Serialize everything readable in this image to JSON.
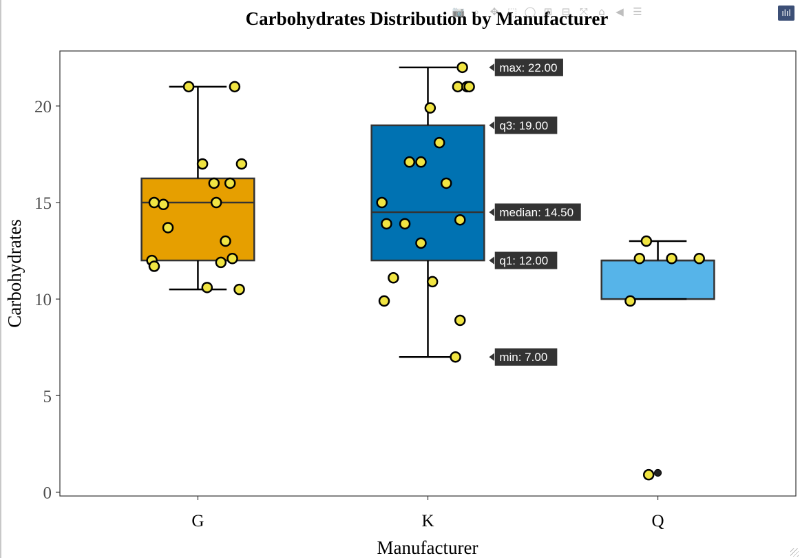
{
  "chart_data": {
    "type": "box",
    "title": "Carbohydrates Distribution by Manufacturer",
    "xlabel": "Manufacturer",
    "ylabel": "Carbohydrates",
    "categories": [
      "G",
      "K",
      "Q"
    ],
    "ylim": [
      -0.2,
      22.85
    ],
    "yticks": [
      0,
      5,
      10,
      15,
      20
    ],
    "grid": false,
    "colors": {
      "G": "#E69F00",
      "K": "#0072B2",
      "Q": "#56B4E9"
    },
    "point_color": "#F0E442",
    "boxes": [
      {
        "category": "G",
        "min": 10.5,
        "q1": 12,
        "median": 15,
        "q3": 16.25,
        "max": 21
      },
      {
        "category": "K",
        "min": 7,
        "q1": 12,
        "median": 14.5,
        "q3": 19,
        "max": 22
      },
      {
        "category": "Q",
        "min": 10,
        "q1": 10,
        "median": 12,
        "q3": 12,
        "max": 13
      }
    ],
    "outliers": [
      {
        "category": "Q",
        "y": 1
      }
    ],
    "points": [
      {
        "category": "G",
        "jitter": -0.04,
        "y": 21
      },
      {
        "category": "G",
        "jitter": 0.16,
        "y": 21
      },
      {
        "category": "G",
        "jitter": 0.02,
        "y": 17
      },
      {
        "category": "G",
        "jitter": 0.19,
        "y": 17
      },
      {
        "category": "G",
        "jitter": 0.07,
        "y": 16
      },
      {
        "category": "G",
        "jitter": 0.14,
        "y": 16
      },
      {
        "category": "G",
        "jitter": 0.08,
        "y": 15
      },
      {
        "category": "G",
        "jitter": -0.19,
        "y": 15
      },
      {
        "category": "G",
        "jitter": -0.15,
        "y": 14.9
      },
      {
        "category": "G",
        "jitter": -0.13,
        "y": 13.7
      },
      {
        "category": "G",
        "jitter": 0.12,
        "y": 13
      },
      {
        "category": "G",
        "jitter": 0.15,
        "y": 12.1
      },
      {
        "category": "G",
        "jitter": 0.1,
        "y": 11.9
      },
      {
        "category": "G",
        "jitter": -0.2,
        "y": 12
      },
      {
        "category": "G",
        "jitter": -0.19,
        "y": 11.7
      },
      {
        "category": "G",
        "jitter": 0.04,
        "y": 10.6
      },
      {
        "category": "G",
        "jitter": 0.18,
        "y": 10.5
      },
      {
        "category": "K",
        "jitter": 0.15,
        "y": 22
      },
      {
        "category": "K",
        "jitter": 0.13,
        "y": 21
      },
      {
        "category": "K",
        "jitter": 0.17,
        "y": 21
      },
      {
        "category": "K",
        "jitter": 0.18,
        "y": 21
      },
      {
        "category": "K",
        "jitter": 0.01,
        "y": 19.9
      },
      {
        "category": "K",
        "jitter": 0.05,
        "y": 18.1
      },
      {
        "category": "K",
        "jitter": -0.08,
        "y": 17.1
      },
      {
        "category": "K",
        "jitter": -0.03,
        "y": 17.1
      },
      {
        "category": "K",
        "jitter": 0.08,
        "y": 16
      },
      {
        "category": "K",
        "jitter": -0.2,
        "y": 15
      },
      {
        "category": "K",
        "jitter": 0.14,
        "y": 14.1
      },
      {
        "category": "K",
        "jitter": -0.18,
        "y": 13.9
      },
      {
        "category": "K",
        "jitter": -0.1,
        "y": 13.9
      },
      {
        "category": "K",
        "jitter": -0.03,
        "y": 12.9
      },
      {
        "category": "K",
        "jitter": -0.15,
        "y": 11.1
      },
      {
        "category": "K",
        "jitter": 0.02,
        "y": 10.9
      },
      {
        "category": "K",
        "jitter": -0.19,
        "y": 9.9
      },
      {
        "category": "K",
        "jitter": 0.14,
        "y": 8.9
      },
      {
        "category": "K",
        "jitter": 0.12,
        "y": 7
      },
      {
        "category": "Q",
        "jitter": -0.05,
        "y": 13
      },
      {
        "category": "Q",
        "jitter": -0.08,
        "y": 12.1
      },
      {
        "category": "Q",
        "jitter": 0.06,
        "y": 12.1
      },
      {
        "category": "Q",
        "jitter": 0.18,
        "y": 12.1
      },
      {
        "category": "Q",
        "jitter": -0.12,
        "y": 9.9
      },
      {
        "category": "Q",
        "jitter": -0.04,
        "y": 0.9
      }
    ],
    "hover": {
      "category": "K",
      "labels": [
        {
          "key": "max",
          "text": "max: 22.00",
          "y": 22
        },
        {
          "key": "q3",
          "text": "q3: 19.00",
          "y": 19
        },
        {
          "key": "median",
          "text": "median: 14.50",
          "y": 14.5
        },
        {
          "key": "q1",
          "text": "q1: 12.00",
          "y": 12
        },
        {
          "key": "min",
          "text": "min: 7.00",
          "y": 7
        }
      ]
    }
  },
  "modebar": {
    "buttons": [
      {
        "name": "camera-icon",
        "glyph": "📷"
      },
      {
        "name": "zoom-icon",
        "glyph": "⌕"
      },
      {
        "name": "pan-icon",
        "glyph": "✥"
      },
      {
        "name": "box-select-icon",
        "glyph": "⬚"
      },
      {
        "name": "lasso-icon",
        "glyph": "◯"
      },
      {
        "name": "zoom-in-icon",
        "glyph": "⊞"
      },
      {
        "name": "zoom-out-icon",
        "glyph": "⊟"
      },
      {
        "name": "autoscale-icon",
        "glyph": "⤧"
      },
      {
        "name": "home-icon",
        "glyph": "⌂"
      },
      {
        "name": "spike-lines-icon",
        "glyph": "◀"
      },
      {
        "name": "compare-icon",
        "glyph": "☰"
      }
    ],
    "logo": "ılıl"
  }
}
